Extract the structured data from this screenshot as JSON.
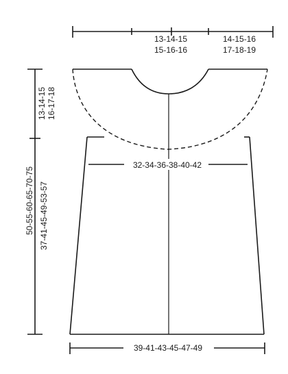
{
  "measurements": {
    "top_middle_line1": "13-14-15",
    "top_middle_line2": "15-16-16",
    "top_right_line1": "14-15-16",
    "top_right_line2": "17-18-19",
    "armhole_line1": "13-14-15",
    "armhole_line2": "16-17-18",
    "chest_width": "32-34-36-38-40-42",
    "total_length_line1": "50-55-60-65-70-75",
    "total_length_line2": "37-41-45-49-53-57",
    "bottom_width": "39-41-43-45-47-49"
  }
}
